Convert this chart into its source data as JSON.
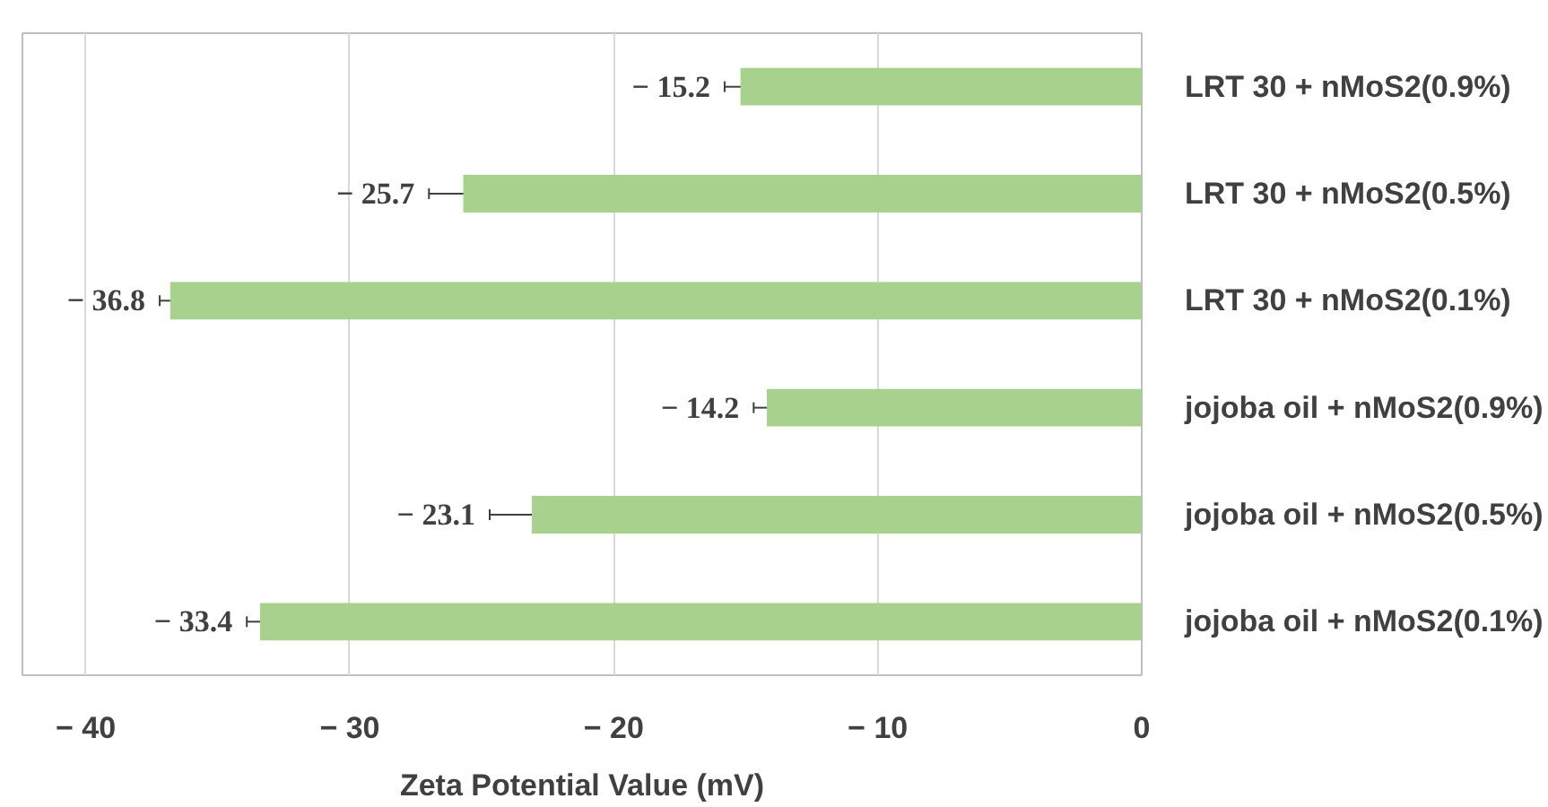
{
  "chart_data": {
    "type": "bar",
    "orientation": "horizontal",
    "xlabel": "Zeta Potential Value (mV)",
    "categories": [
      "LRT 30 + nMoS2(0.9%)",
      "LRT 30 + nMoS2(0.5%)",
      "LRT 30 + nMoS2(0.1%)",
      "jojoba oil + nMoS2(0.9%)",
      "jojoba oil + nMoS2(0.5%)",
      "jojoba oil + nMoS2(0.1%)"
    ],
    "values": [
      -15.2,
      -25.7,
      -36.8,
      -14.2,
      -23.1,
      -33.4
    ],
    "errors": [
      0.6,
      1.3,
      0.4,
      0.5,
      1.6,
      0.5
    ],
    "value_labels": [
      "− 15.2",
      "− 25.7",
      "− 36.8",
      "− 14.2",
      "− 23.1",
      "− 33.4"
    ],
    "color": "#a9d18e",
    "xlim": [
      -42.4,
      0
    ],
    "xticks": [
      {
        "value": -40,
        "label": "− 40"
      },
      {
        "value": -30,
        "label": "− 30"
      },
      {
        "value": -20,
        "label": "− 20"
      },
      {
        "value": -10,
        "label": "− 10"
      },
      0
    ],
    "grid": "x"
  }
}
